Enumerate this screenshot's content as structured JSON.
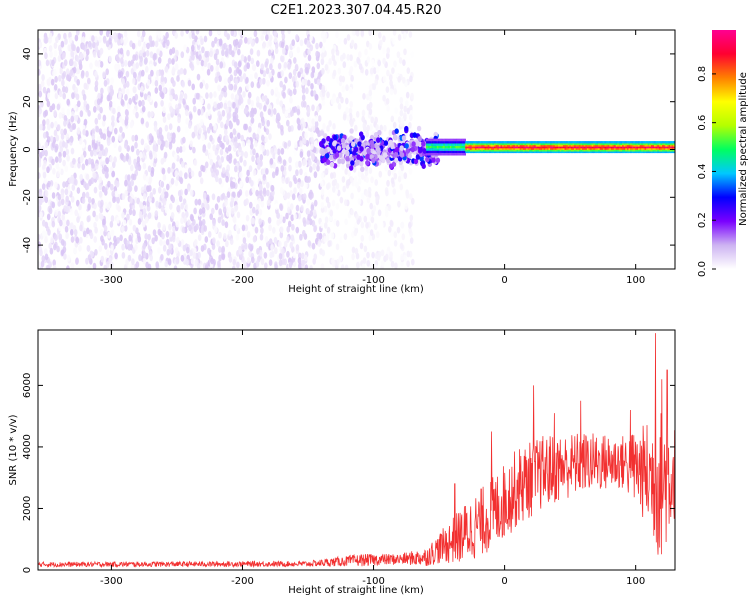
{
  "figure": {
    "title": "C2E1.2023.307.04.45.R20"
  },
  "chart_data": [
    {
      "type": "heatmap",
      "xlabel": "Height of straight line (km)",
      "ylabel": "Frequency (Hz)",
      "xlim": [
        -356,
        130
      ],
      "ylim": [
        -50,
        50
      ],
      "xticks": [
        -300,
        -200,
        -100,
        0,
        100
      ],
      "yticks": [
        -40,
        -20,
        0,
        20,
        40
      ],
      "colorbar": {
        "label": "Normalized spectral amplitude",
        "range": [
          0.0,
          0.98
        ],
        "ticks": [
          0.0,
          0.2,
          0.4,
          0.6,
          0.8
        ],
        "colors": [
          "#ffffff",
          "#cdb3f2",
          "#7a00ff",
          "#0000ff",
          "#00c8ff",
          "#00ff60",
          "#b4ff00",
          "#ffff00",
          "#ff8000",
          "#ff0030",
          "#ff0090"
        ]
      },
      "regions": [
        {
          "x": [
            -356,
            -140
          ],
          "freq_range": [
            -50,
            50
          ],
          "amplitude": [
            0.0,
            0.08
          ],
          "pattern": "noise"
        },
        {
          "x": [
            -140,
            -70
          ],
          "freq_range": [
            -50,
            50
          ],
          "amplitude": [
            0.0,
            0.03
          ],
          "pattern": "sparse noise"
        },
        {
          "x": [
            -140,
            -50
          ],
          "freq_range": [
            -10,
            10
          ],
          "amplitude": [
            0.05,
            0.35
          ],
          "pattern": "blob"
        },
        {
          "x": [
            -60,
            -30
          ],
          "freq_center": 1,
          "freq_halfwidth": 3,
          "amplitude": [
            0.3,
            0.55
          ],
          "pattern": "band"
        },
        {
          "x": [
            -30,
            130
          ],
          "freq_center": 1,
          "freq_halfwidth": 2,
          "amplitude": [
            0.8,
            0.98
          ],
          "pattern": "line"
        }
      ]
    },
    {
      "type": "line",
      "xlabel": "Height of straight line (km)",
      "ylabel": "SNR (10 * v/v)",
      "xlim": [
        -356,
        130
      ],
      "ylim": [
        0,
        7800
      ],
      "xticks": [
        -300,
        -200,
        -100,
        0,
        100
      ],
      "yticks": [
        0,
        2000,
        4000,
        6000
      ],
      "color": "#f23030",
      "envelope": [
        {
          "x": -356,
          "base": 180,
          "spread": 80
        },
        {
          "x": -150,
          "base": 200,
          "spread": 90
        },
        {
          "x": -110,
          "base": 320,
          "spread": 200
        },
        {
          "x": -80,
          "base": 350,
          "spread": 180
        },
        {
          "x": -60,
          "base": 420,
          "spread": 300
        },
        {
          "x": -50,
          "base": 700,
          "spread": 500
        },
        {
          "x": -30,
          "base": 1200,
          "spread": 1000
        },
        {
          "x": -10,
          "base": 1800,
          "spread": 1200
        },
        {
          "x": 10,
          "base": 2700,
          "spread": 1300
        },
        {
          "x": 30,
          "base": 3200,
          "spread": 1200
        },
        {
          "x": 60,
          "base": 3500,
          "spread": 1000
        },
        {
          "x": 90,
          "base": 3500,
          "spread": 900
        },
        {
          "x": 105,
          "base": 3200,
          "spread": 1500
        },
        {
          "x": 120,
          "base": 2800,
          "spread": 2500
        },
        {
          "x": 130,
          "base": 3200,
          "spread": 1500
        }
      ],
      "peaks": [
        {
          "x": -10,
          "y": 4500
        },
        {
          "x": 22,
          "y": 6000
        },
        {
          "x": 38,
          "y": 5100
        },
        {
          "x": 58,
          "y": 5500
        },
        {
          "x": 96,
          "y": 5200
        },
        {
          "x": 115,
          "y": 7700
        },
        {
          "x": 120,
          "y": 6200
        },
        {
          "x": 124,
          "y": 6500
        },
        {
          "x": 117,
          "y": 500
        },
        {
          "x": 105,
          "y": 2100
        },
        {
          "x": -38,
          "y": 2800
        }
      ]
    }
  ]
}
